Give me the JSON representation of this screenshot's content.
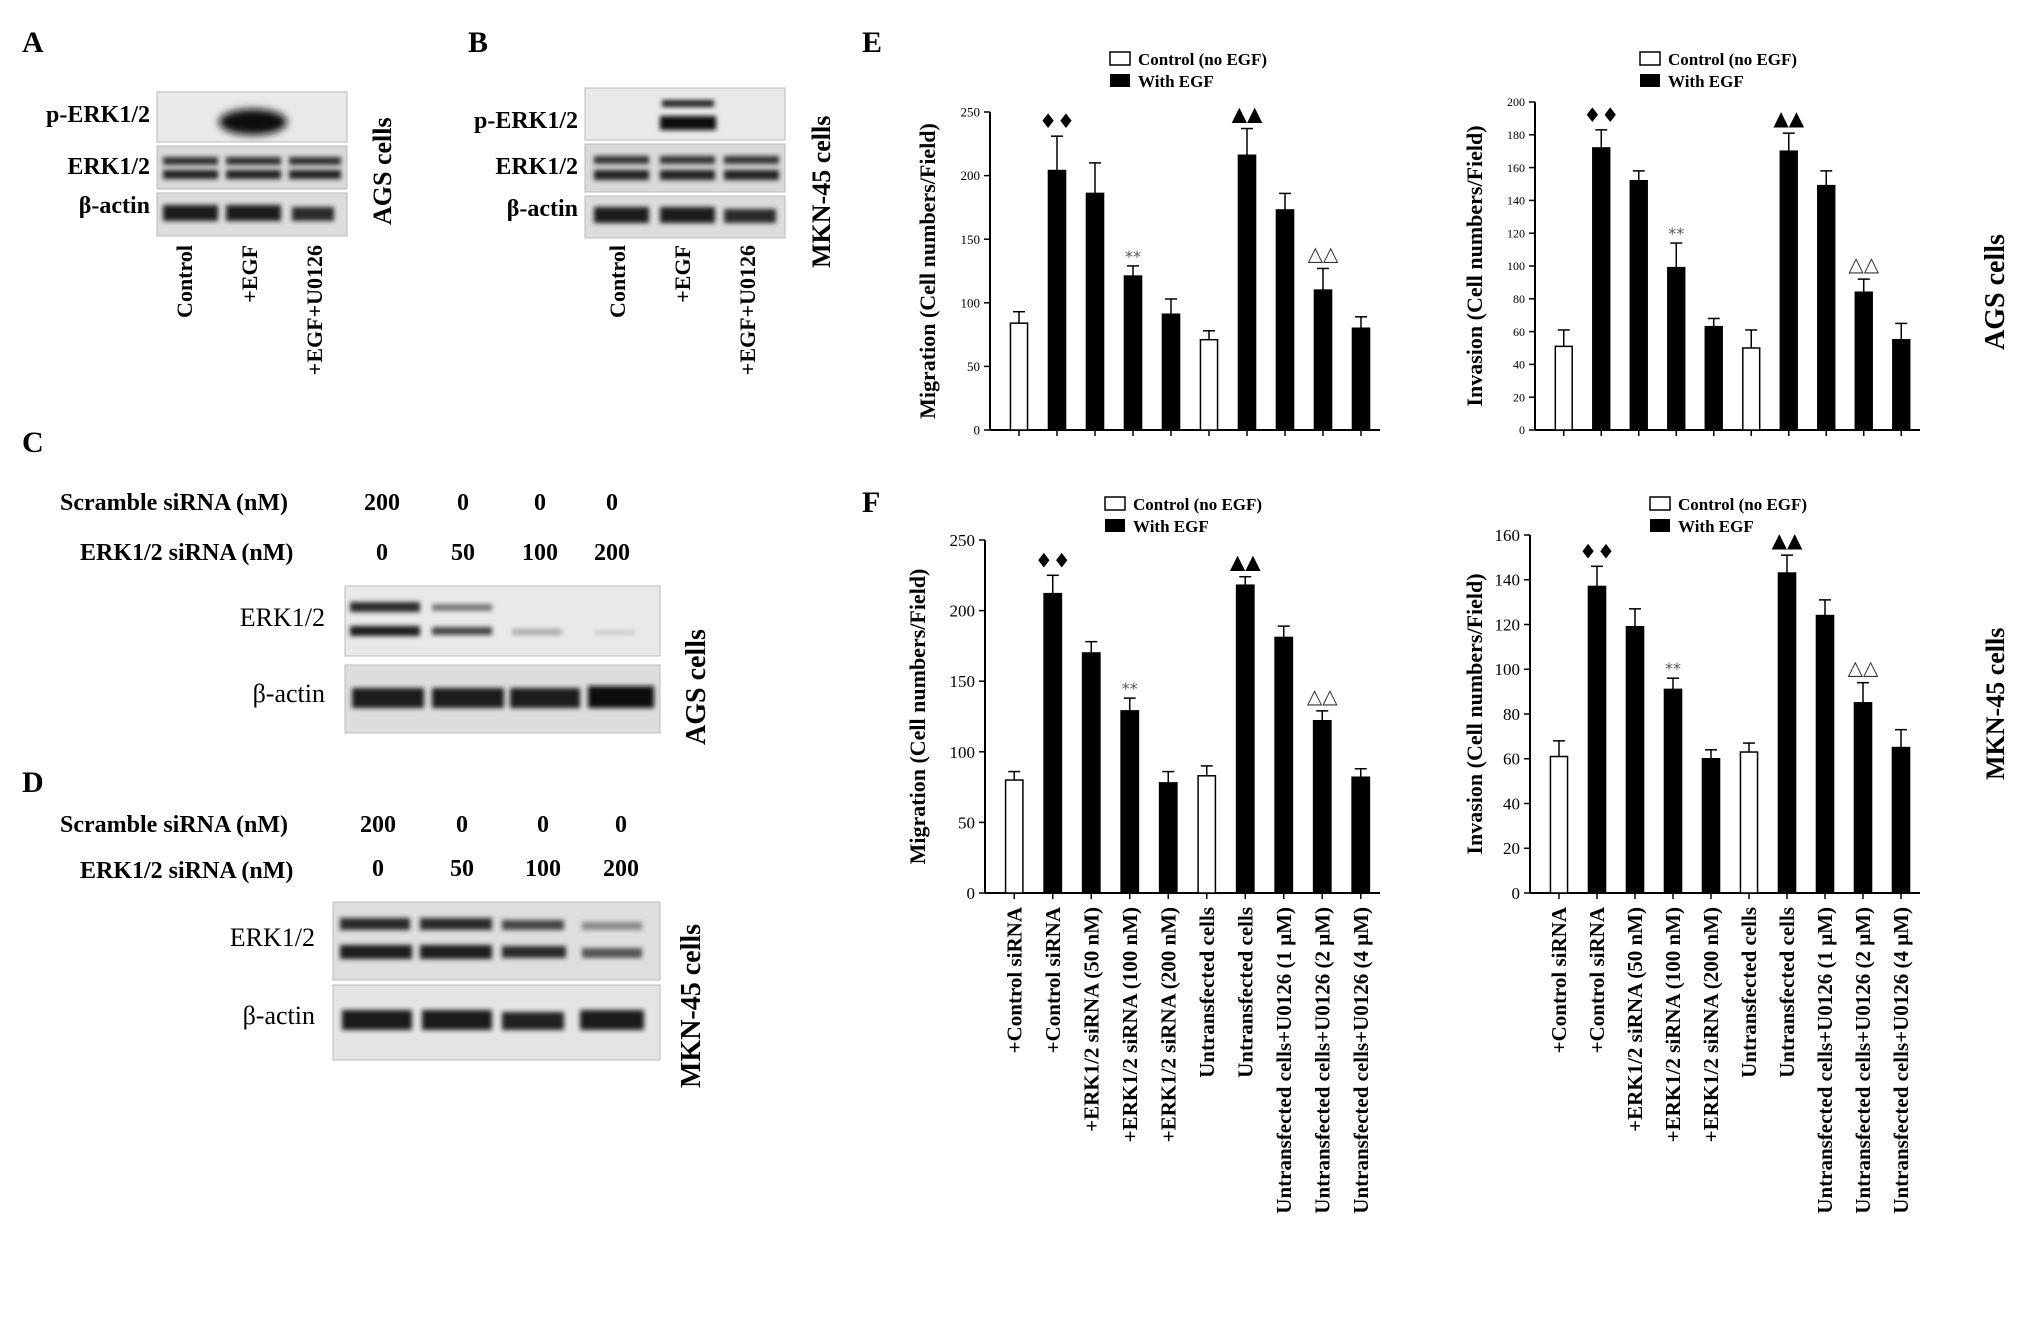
{
  "panels": {
    "A": {
      "letter": "A",
      "rows": [
        "p-ERK1/2",
        "ERK1/2",
        "β-actin"
      ],
      "lanes": [
        "Control",
        "+EGF",
        "+EGF+U0126"
      ],
      "cell_label": "AGS cells"
    },
    "B": {
      "letter": "B",
      "rows": [
        "p-ERK1/2",
        "ERK1/2",
        "β-actin"
      ],
      "lanes": [
        "Control",
        "+EGF",
        "+EGF+U0126"
      ],
      "cell_label": "MKN-45 cells"
    },
    "C": {
      "letter": "C",
      "scramble_label": "Scramble siRNA (nM)",
      "scramble_values": [
        "200",
        "0",
        "0",
        "0"
      ],
      "erk_label": "ERK1/2 siRNA (nM)",
      "erk_values": [
        "0",
        "50",
        "100",
        "200"
      ],
      "rows": [
        "ERK1/2",
        "β-actin"
      ],
      "cell_label": "AGS cells"
    },
    "D": {
      "letter": "D",
      "scramble_label": "Scramble siRNA (nM)",
      "scramble_values": [
        "200",
        "0",
        "0",
        "0"
      ],
      "erk_label": "ERK1/2 siRNA (nM)",
      "erk_values": [
        "0",
        "50",
        "100",
        "200"
      ],
      "rows": [
        "ERK1/2",
        "β-actin"
      ],
      "cell_label": "MKN-45 cells"
    },
    "E": {
      "letter": "E",
      "cell_label": "AGS cells"
    },
    "F": {
      "letter": "F",
      "cell_label": "MKN-45 cells"
    }
  },
  "legend": {
    "control": "Control (no EGF)",
    "egf": "With EGF"
  },
  "colors": {
    "control_fill": "#ffffff",
    "egf_fill": "#000000"
  },
  "categories": [
    "+Control siRNA",
    "+Control siRNA",
    "+ERK1/2 siRNA (50 nM)",
    "+ERK1/2 siRNA (100 nM)",
    "+ERK1/2 siRNA (200 nM)",
    "Untransfected cells",
    "Untransfected cells",
    "Untransfected cells+U0126 (1 μM)",
    "Untransfected cells+U0126 (2 μM)",
    "Untransfected cells+U0126 (4 μM)"
  ],
  "chart_data": [
    {
      "id": "E-migration",
      "type": "bar",
      "ylabel": "Migration (Cell numbers/Field)",
      "ylim": [
        0,
        250
      ],
      "yticks": [
        0,
        50,
        100,
        150,
        200,
        250
      ],
      "fills": [
        "control",
        "egf",
        "egf",
        "egf",
        "egf",
        "control",
        "egf",
        "egf",
        "egf",
        "egf"
      ],
      "values": [
        84,
        204,
        186,
        121,
        91,
        71,
        216,
        173,
        110,
        80
      ],
      "errors": [
        9,
        27,
        24,
        8,
        12,
        7,
        21,
        13,
        17,
        9
      ],
      "markers": [
        "",
        "♦♦",
        "",
        "**",
        "",
        "",
        "▲▲",
        "",
        "△△",
        ""
      ]
    },
    {
      "id": "E-invasion",
      "type": "bar",
      "ylabel": "Invasion (Cell numbers/Field)",
      "ylim": [
        0,
        200
      ],
      "yticks": [
        0,
        20,
        40,
        60,
        80,
        100,
        120,
        140,
        160,
        180,
        200
      ],
      "fills": [
        "control",
        "egf",
        "egf",
        "egf",
        "egf",
        "control",
        "egf",
        "egf",
        "egf",
        "egf"
      ],
      "values": [
        51,
        172,
        152,
        99,
        63,
        50,
        170,
        149,
        84,
        55
      ],
      "errors": [
        10,
        11,
        6,
        15,
        5,
        11,
        11,
        9,
        8,
        10
      ],
      "markers": [
        "",
        "♦♦",
        "",
        "**",
        "",
        "",
        "▲▲",
        "",
        "△△",
        ""
      ]
    },
    {
      "id": "F-migration",
      "type": "bar",
      "ylabel": "Migration (Cell numbers/Field)",
      "ylim": [
        0,
        250
      ],
      "yticks": [
        0,
        50,
        100,
        150,
        200,
        250
      ],
      "fills": [
        "control",
        "egf",
        "egf",
        "egf",
        "egf",
        "control",
        "egf",
        "egf",
        "egf",
        "egf"
      ],
      "values": [
        80,
        212,
        170,
        129,
        78,
        83,
        218,
        181,
        122,
        82
      ],
      "errors": [
        6,
        13,
        8,
        9,
        8,
        7,
        6,
        8,
        7,
        6
      ],
      "markers": [
        "",
        "♦♦",
        "",
        "**",
        "",
        "",
        "▲▲",
        "",
        "△△",
        ""
      ]
    },
    {
      "id": "F-invasion",
      "type": "bar",
      "ylabel": "Invasion (Cell numbers/Field)",
      "ylim": [
        0,
        160
      ],
      "yticks": [
        0,
        20,
        40,
        60,
        80,
        100,
        120,
        140,
        160
      ],
      "fills": [
        "control",
        "egf",
        "egf",
        "egf",
        "egf",
        "control",
        "egf",
        "egf",
        "egf",
        "egf"
      ],
      "values": [
        61,
        137,
        119,
        91,
        60,
        63,
        143,
        124,
        85,
        65
      ],
      "errors": [
        7,
        9,
        8,
        5,
        4,
        4,
        8,
        7,
        9,
        8
      ],
      "markers": [
        "",
        "♦♦",
        "",
        "**",
        "",
        "",
        "▲▲",
        "",
        "△△",
        ""
      ]
    }
  ]
}
